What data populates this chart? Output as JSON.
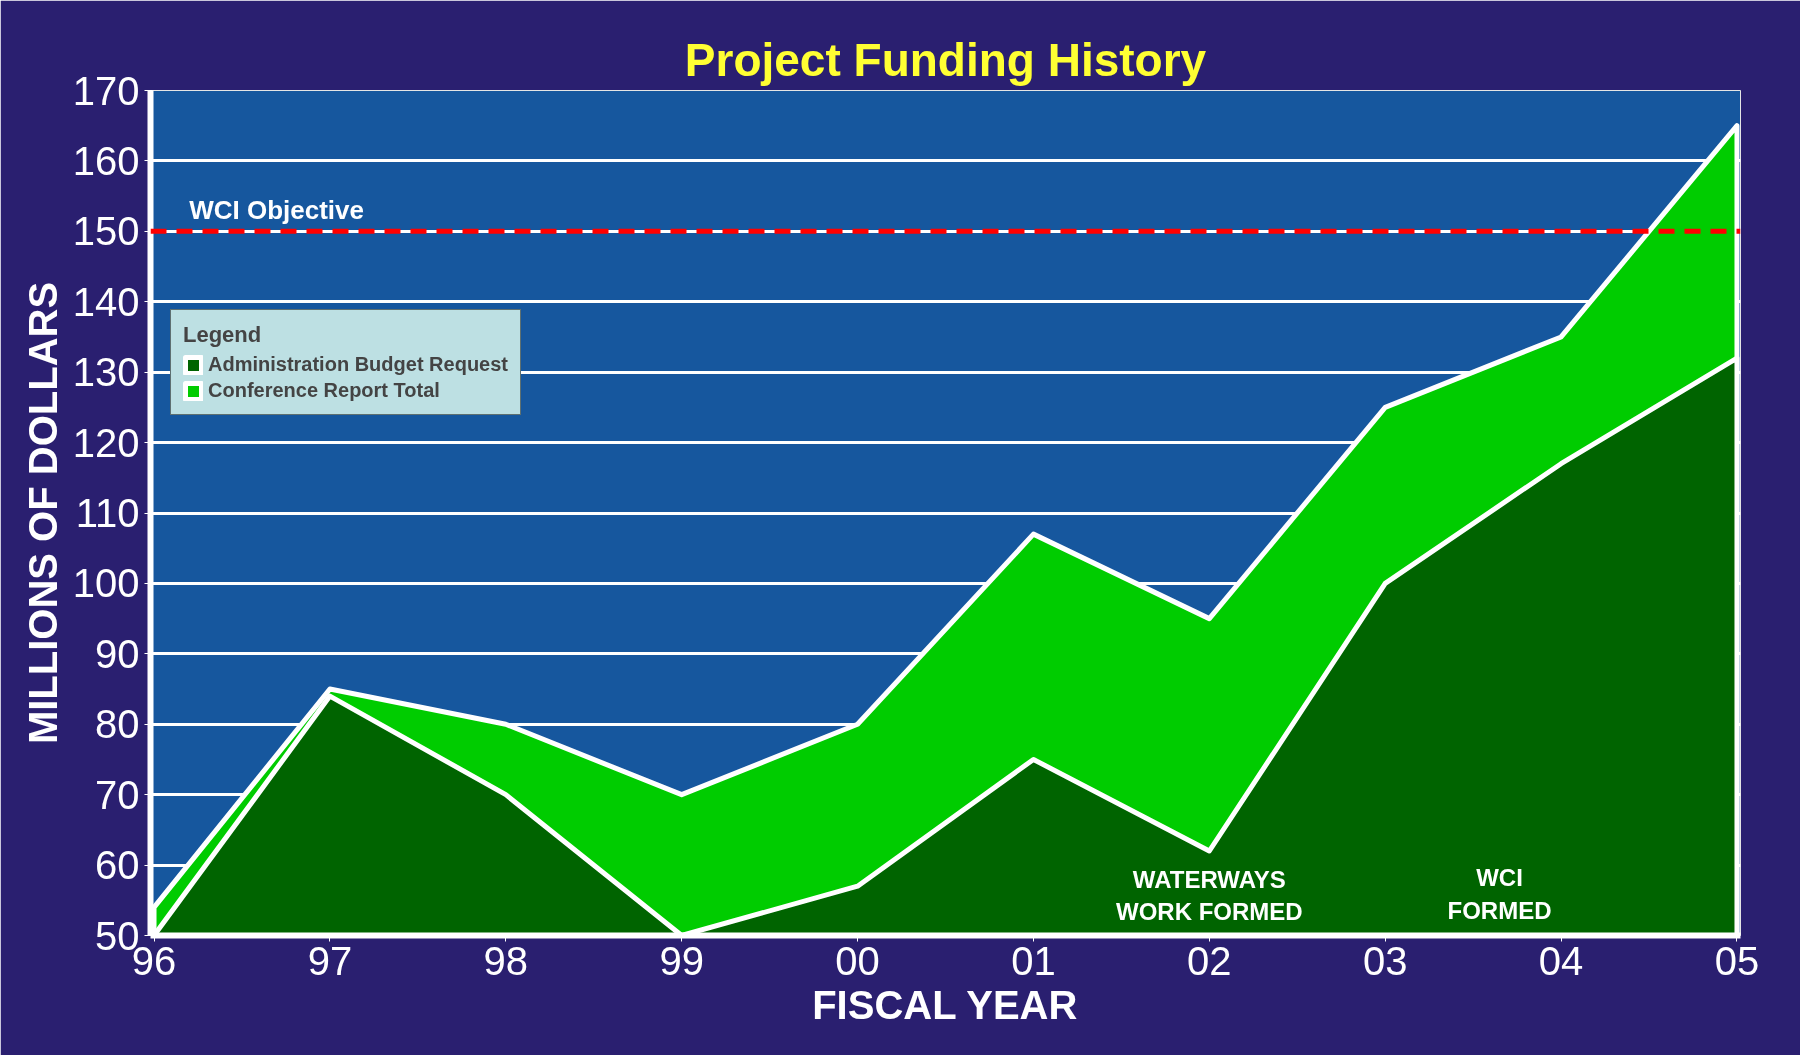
{
  "chart_data": {
    "type": "area",
    "title": "Project Funding History",
    "xlabel": "FISCAL YEAR",
    "ylabel": "MILLIONS OF DOLLARS",
    "legend_title": "Legend",
    "categories": [
      "96",
      "97",
      "98",
      "99",
      "00",
      "01",
      "02",
      "03",
      "04",
      "05"
    ],
    "series": [
      {
        "name": "Conference Report Total",
        "color": "#00cc00",
        "values": [
          54,
          85,
          80,
          70,
          80,
          107,
          95,
          125,
          135,
          165
        ]
      },
      {
        "name": "Administration Budget Request",
        "color": "#006400",
        "values": [
          50,
          84,
          70,
          50,
          57,
          75,
          62,
          100,
          117,
          132
        ]
      }
    ],
    "ylim": [
      50,
      170
    ],
    "yticks": [
      50,
      60,
      70,
      80,
      90,
      100,
      110,
      120,
      130,
      140,
      150,
      160,
      170
    ],
    "grid": "y",
    "legend": "top left",
    "ref_lines": [
      {
        "axis": "y",
        "value": 150,
        "label": "WCI Objective",
        "color": "#ff0000",
        "line_style": "dashed"
      }
    ],
    "annotations": [
      "WATERWAYS\nWORK FORMED",
      "WCI\nFORMED"
    ]
  }
}
